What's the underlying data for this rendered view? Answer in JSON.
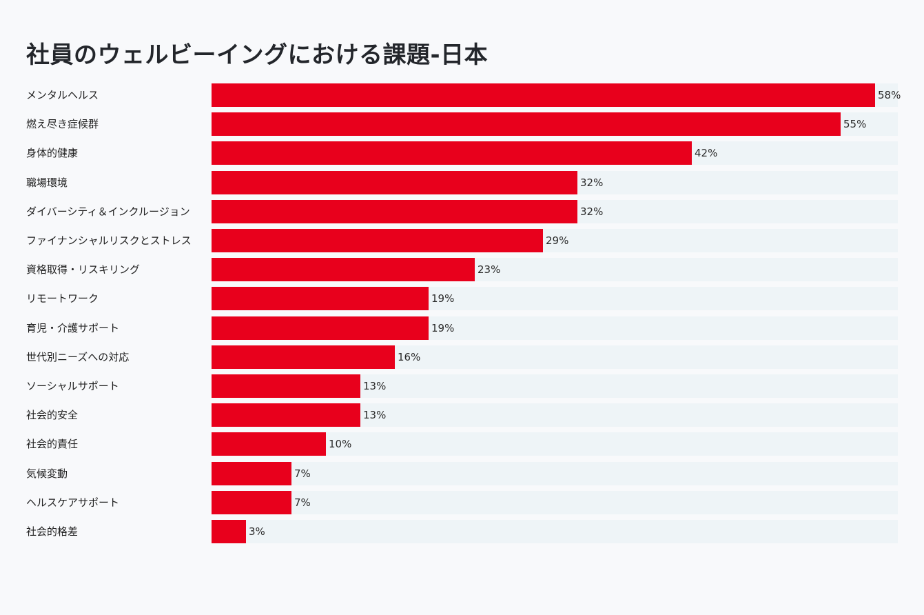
{
  "title": "社員のウェルビーイングにおける課題-日本",
  "colors": {
    "bar": "#e8001c",
    "track": "#eef4f7",
    "background": "#f8f9fb"
  },
  "chart_data": {
    "type": "bar",
    "orientation": "horizontal",
    "title": "社員のウェルビーイングにおける課題-日本",
    "categories": [
      "メンタルヘルス",
      "燃え尽き症候群",
      "身体的健康",
      "職場環境",
      "ダイバーシティ＆インクルージョン",
      "ファイナンシャルリスクとストレス",
      "資格取得・リスキリング",
      "リモートワーク",
      "育児・介護サポート",
      "世代別ニーズへの対応",
      "ソーシャルサポート",
      "社会的安全",
      "社会的責任",
      "気候変動",
      "ヘルスケアサポート",
      "社会的格差"
    ],
    "values": [
      58,
      55,
      42,
      32,
      32,
      29,
      23,
      19,
      19,
      16,
      13,
      13,
      10,
      7,
      7,
      3
    ],
    "value_labels": [
      "58%",
      "55%",
      "42%",
      "32%",
      "32%",
      "29%",
      "23%",
      "19%",
      "19%",
      "16%",
      "13%",
      "13%",
      "10%",
      "7%",
      "7%",
      "3%"
    ],
    "xlim": [
      0,
      60
    ],
    "unit": "%",
    "grid": false,
    "legend": "none"
  }
}
